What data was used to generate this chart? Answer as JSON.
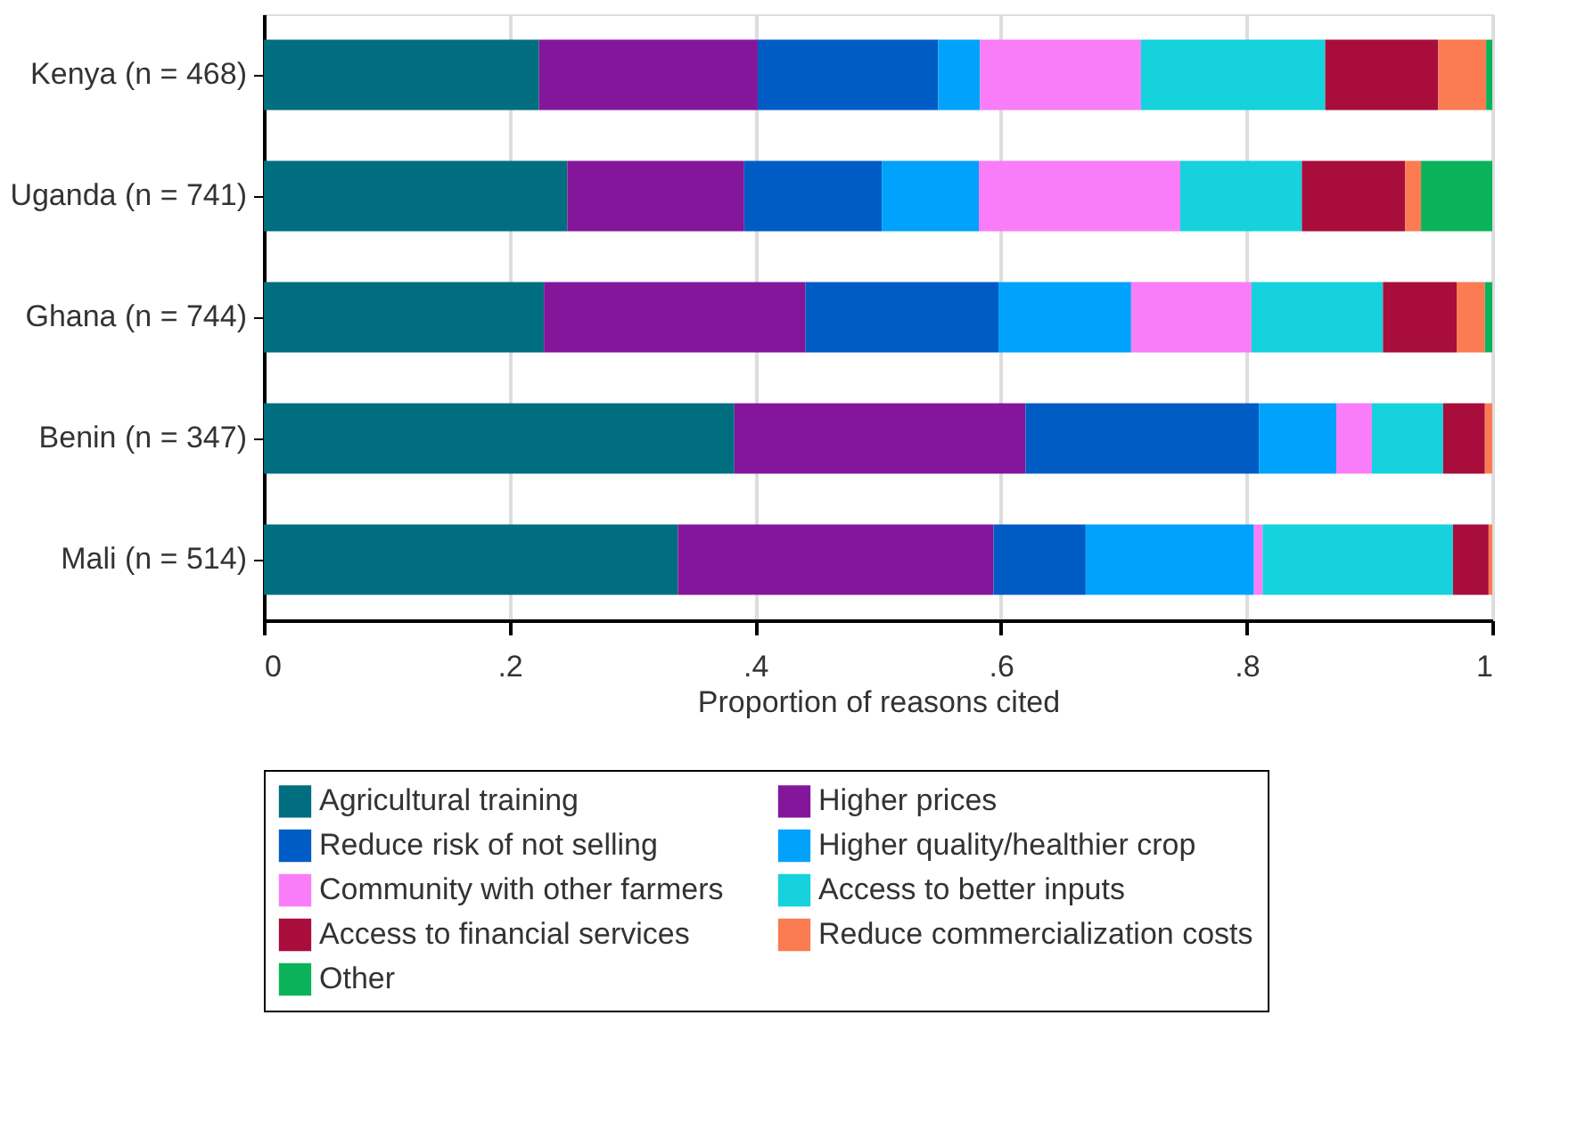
{
  "chart_data": {
    "type": "bar",
    "orientation": "horizontal",
    "stacked": true,
    "categories": [
      "Kenya (n = 468)",
      "Uganda (n = 741)",
      "Ghana (n = 744)",
      "Benin (n = 347)",
      "Mali (n = 514)"
    ],
    "xlabel": "Proportion of reasons cited",
    "xlim": [
      0,
      1
    ],
    "xticks": [
      0,
      {
        "value": 0.2,
        "label": ".2"
      },
      {
        "value": 0.4,
        "label": ".4"
      },
      {
        "value": 0.6,
        "label": ".6"
      },
      {
        "value": 0.8,
        "label": ".8"
      },
      1
    ],
    "grid": "x",
    "legend": "bottom",
    "series": [
      {
        "name": "Agricultural training",
        "color": "#006e7f",
        "values": [
          0.224,
          0.247,
          0.228,
          0.383,
          0.337
        ]
      },
      {
        "name": "Higher prices",
        "color": "#83169b",
        "values": [
          0.178,
          0.144,
          0.213,
          0.237,
          0.257
        ]
      },
      {
        "name": "Reduce risk of not selling",
        "color": "#005cc5",
        "values": [
          0.147,
          0.112,
          0.157,
          0.19,
          0.075
        ]
      },
      {
        "name": "Higher quality/healthier crop",
        "color": "#00a2fb",
        "values": [
          0.034,
          0.079,
          0.108,
          0.063,
          0.137
        ]
      },
      {
        "name": "Community with other farmers",
        "color": "#f97df8",
        "values": [
          0.131,
          0.164,
          0.098,
          0.029,
          0.007
        ]
      },
      {
        "name": "Access to better inputs",
        "color": "#15d2dd",
        "values": [
          0.15,
          0.099,
          0.107,
          0.058,
          0.155
        ]
      },
      {
        "name": "Access to financial services",
        "color": "#a80d3c",
        "values": [
          0.092,
          0.084,
          0.06,
          0.034,
          0.029
        ]
      },
      {
        "name": "Reduce commercialization costs",
        "color": "#fb7b52",
        "values": [
          0.039,
          0.013,
          0.023,
          0.006,
          0.003
        ]
      },
      {
        "name": "Other",
        "color": "#0ab35a",
        "values": [
          0.005,
          0.058,
          0.006,
          0,
          0
        ]
      }
    ]
  }
}
